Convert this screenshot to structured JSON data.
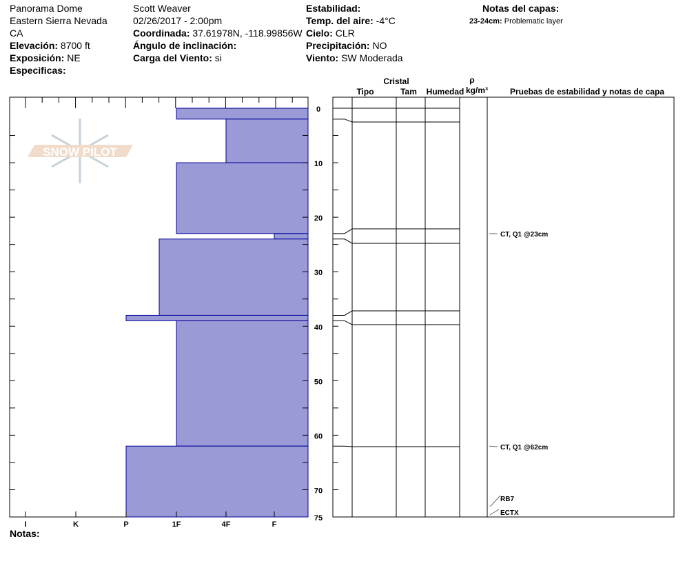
{
  "header": {
    "location": "Panorama Dome",
    "range": "Eastern Sierra Nevada",
    "state": "CA",
    "elevation_label": "Elevación:",
    "elevation": "8700 ft",
    "aspect_label": "Exposición:",
    "aspect": "NE",
    "specifics_label": "Especificas:",
    "observer": "Scott Weaver",
    "datetime": "02/26/2017 - 2:00pm",
    "coord_label": "Coordinada:",
    "coord": "37.61978N, -118.99856W",
    "slope_label": "Ángulo de inclinación:",
    "wind_load_label": "Carga del Viento:",
    "wind_load": "si",
    "stability_label": "Estabilidad:",
    "air_temp_label": "Temp. del aire:",
    "air_temp": "-4°C",
    "sky_label": "Cielo:",
    "sky": "CLR",
    "precip_label": "Precipitación:",
    "precip": "NO",
    "wind_label": "Viento:",
    "wind": "SW Moderada",
    "layer_notes_title": "Notas del capas:",
    "layer_note_range": "23-24cm:",
    "layer_note_text": "Problematic layer",
    "notes_label": "Notas:"
  },
  "columns": {
    "crystal": "Cristal",
    "type": "Tipo",
    "size": "Tam",
    "moisture": "Humedad",
    "rho": "ρ",
    "density_unit": "kg/m³",
    "tests": "Pruebas de estabilidad y notas de capa"
  },
  "logo": "SNOW PILOT",
  "colors": {
    "layer_fill": "#9a9ad6",
    "layer_stroke": "#00009a"
  },
  "chart_data": {
    "type": "bar",
    "orientation": "horizontal",
    "xlabel": "",
    "ylabel": "",
    "hardness_ticks": [
      "I",
      "K",
      "P",
      "1F",
      "4F",
      "F"
    ],
    "depth_ticks": [
      0,
      10,
      20,
      30,
      40,
      50,
      60,
      70,
      75
    ],
    "ylim": [
      0,
      75
    ],
    "layers": [
      {
        "top": 0,
        "bottom": 2,
        "hardness": "1F"
      },
      {
        "top": 2,
        "bottom": 10,
        "hardness": "4F"
      },
      {
        "top": 10,
        "bottom": 23,
        "hardness": "1F"
      },
      {
        "top": 23,
        "bottom": 24,
        "hardness": "F"
      },
      {
        "top": 24,
        "bottom": 38,
        "hardness": "1F-"
      },
      {
        "top": 38,
        "bottom": 39,
        "hardness": "P"
      },
      {
        "top": 39,
        "bottom": 62,
        "hardness": "1F"
      },
      {
        "top": 62,
        "bottom": 75,
        "hardness": "P"
      }
    ],
    "tests": [
      {
        "depth": 23,
        "label": "CT, Q1 @23cm"
      },
      {
        "depth": 62,
        "label": "CT, Q1 @62cm"
      },
      {
        "depth": 74,
        "label": "RB7"
      },
      {
        "depth": 75,
        "label": "ECTX"
      }
    ]
  }
}
